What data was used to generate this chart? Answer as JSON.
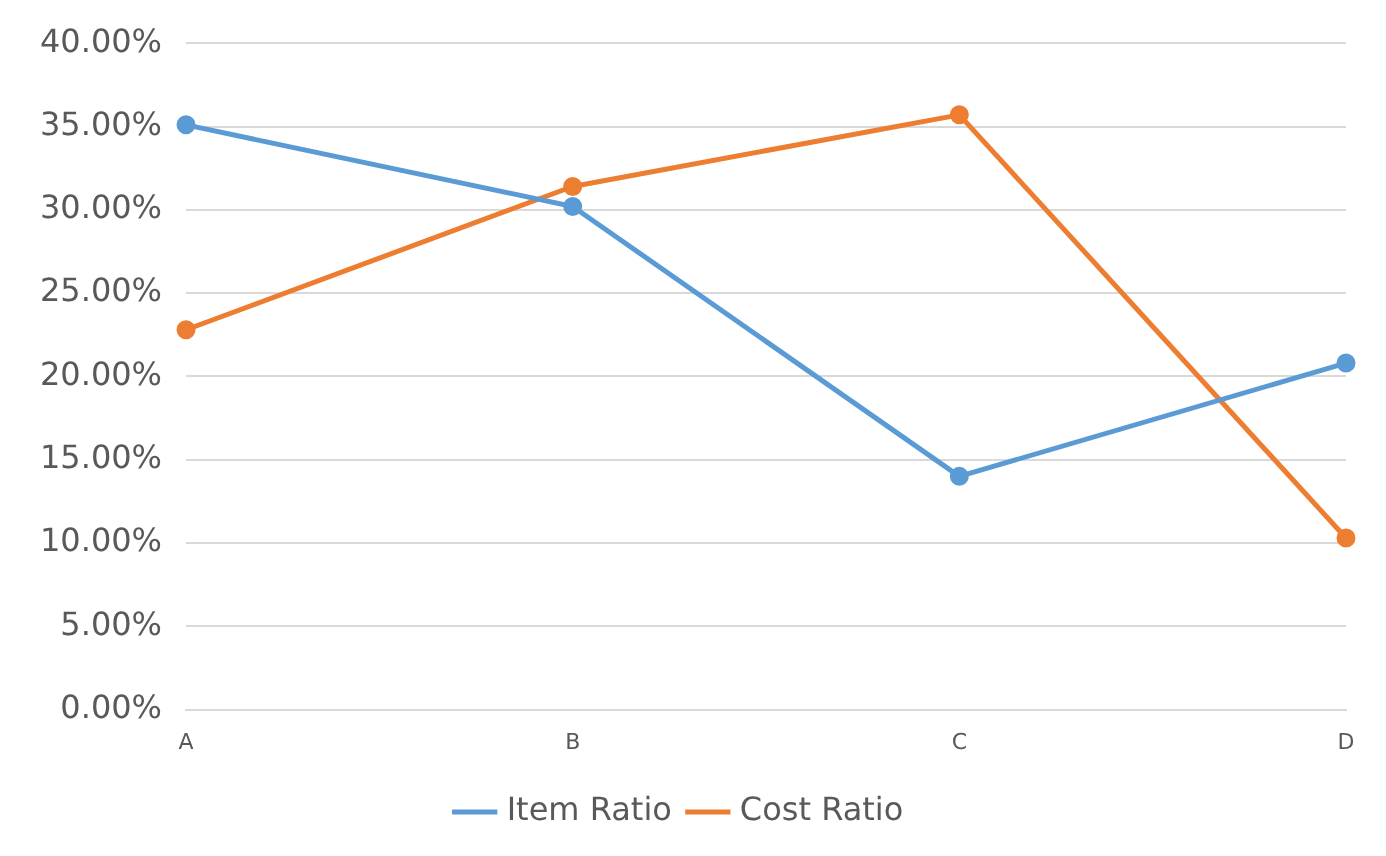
{
  "chart_data": {
    "type": "line",
    "categories": [
      "A",
      "B",
      "C",
      "D"
    ],
    "series": [
      {
        "name": "Item Ratio",
        "color": "#5b9bd5",
        "values": [
          35.1,
          30.2,
          14.0,
          20.8
        ]
      },
      {
        "name": "Cost Ratio",
        "color": "#ed7d31",
        "values": [
          22.8,
          31.4,
          35.7,
          10.3
        ]
      }
    ],
    "ylim": [
      0,
      40
    ],
    "yticks": [
      {
        "value": 0,
        "label": "0.00%"
      },
      {
        "value": 5,
        "label": "5.00%"
      },
      {
        "value": 10,
        "label": "10.00%"
      },
      {
        "value": 15,
        "label": "15.00%"
      },
      {
        "value": 20,
        "label": "20.00%"
      },
      {
        "value": 25,
        "label": "25.00%"
      },
      {
        "value": 30,
        "label": "30.00%"
      },
      {
        "value": 35,
        "label": "35.00%"
      },
      {
        "value": 40,
        "label": "40.00%"
      }
    ],
    "grid": "y",
    "legend": "bottom",
    "marker": "circle",
    "line_style": "solid"
  }
}
